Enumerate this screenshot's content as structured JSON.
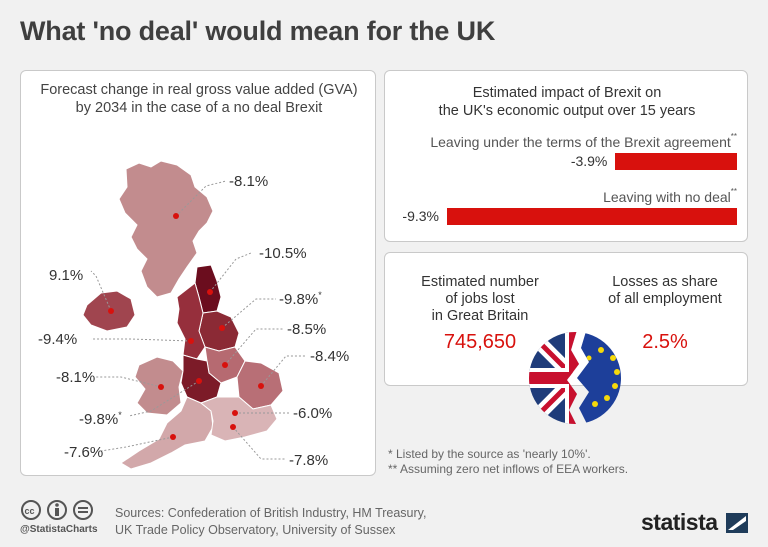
{
  "title": "What 'no deal' would mean for the UK",
  "map": {
    "title_line1": "Forecast change in real gross value added (GVA)",
    "title_line2": "by 2034 in the case of a no deal Brexit",
    "regions": [
      {
        "name": "Scotland",
        "value": "-8.1%",
        "color": "#c28c8e"
      },
      {
        "name": "North East",
        "value": "-10.5%",
        "color": "#6b0d1e"
      },
      {
        "name": "Northern Ireland",
        "value": "9.1%",
        "color": "#a0454f"
      },
      {
        "name": "Yorkshire and the Humber",
        "value": "-9.8%",
        "star": "*",
        "color": "#8b2a35"
      },
      {
        "name": "North West",
        "value": "-9.4%",
        "color": "#962f3c"
      },
      {
        "name": "East Midlands",
        "value": "-8.5%",
        "color": "#b66a71"
      },
      {
        "name": "East of England",
        "value": "-8.4%",
        "color": "#b86f76"
      },
      {
        "name": "Wales",
        "value": "-8.1%",
        "color": "#c28c8e"
      },
      {
        "name": "West Midlands",
        "value": "-9.8%",
        "star": "*",
        "color": "#7c1b28"
      },
      {
        "name": "London",
        "value": "-6.0%",
        "color": "#ead2d3"
      },
      {
        "name": "South West",
        "value": "-7.6%",
        "color": "#d2a8aa"
      },
      {
        "name": "South East",
        "value": "-7.8%",
        "color": "#d9b4b6"
      }
    ],
    "marker_color": "#d8110d"
  },
  "impact": {
    "title_line1": "Estimated impact of Brexit on",
    "title_line2": "the UK's economic output over 15 years",
    "chart_data": {
      "type": "bar",
      "categories": [
        "Leaving under the terms of the Brexit agreement",
        "Leaving with no deal"
      ],
      "category_marks": [
        "**",
        "**"
      ],
      "values": [
        -3.9,
        -9.3
      ],
      "value_labels": [
        "-3.9%",
        "-9.3%"
      ],
      "color": "#d8110d"
    }
  },
  "jobs": {
    "left_line1": "Estimated number",
    "left_line2": "of jobs lost",
    "left_line3": "in Great Britain",
    "left_value": "745,650",
    "right_line1": "Losses as share",
    "right_line2": "of all employment",
    "right_value": "2.5%",
    "accent": "#d8110d"
  },
  "footnotes": [
    "*   Listed by the source as 'nearly 10%'.",
    "** Assuming zero net inflows of EEA workers."
  ],
  "footer": {
    "handle": "@StatistaCharts",
    "sources_line1": "Sources: Confederation of British Industry, HM Treasury,",
    "sources_line2": "UK Trade Policy Observatory, University of Sussex",
    "brand": "statista"
  }
}
